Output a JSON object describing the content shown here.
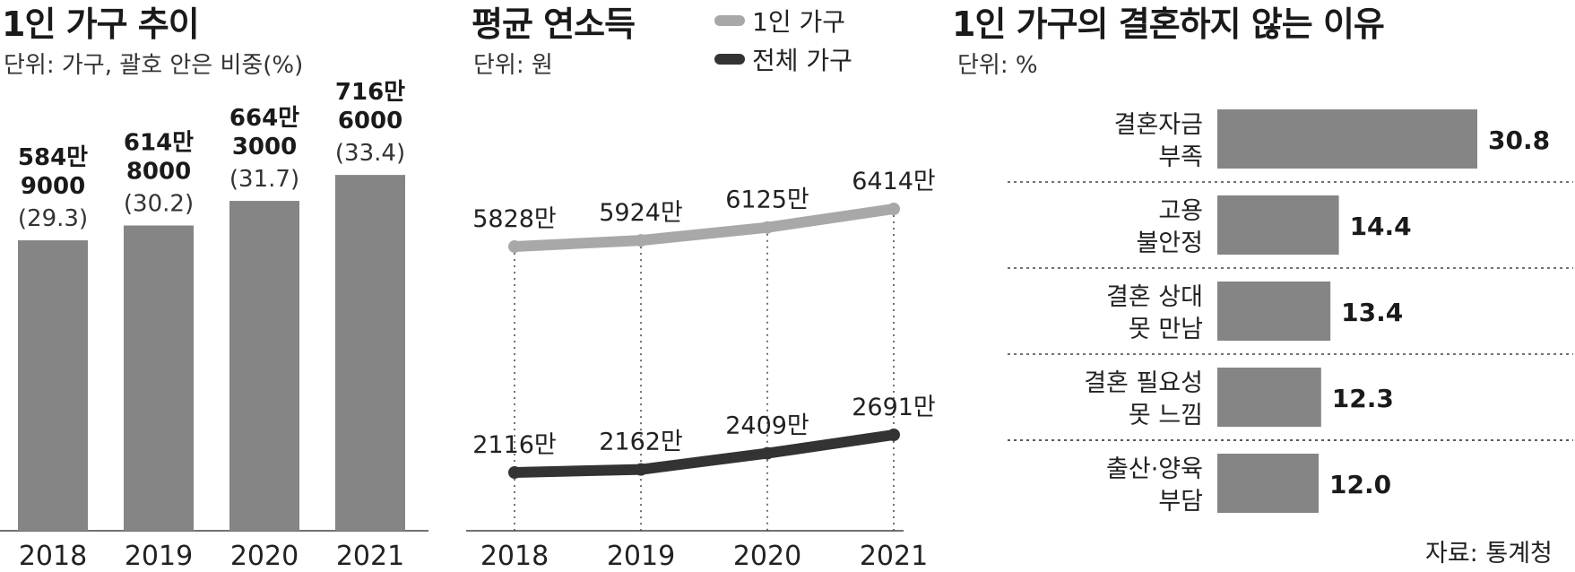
{
  "colors": {
    "bar": "#858585",
    "line_single": "#a8a8a8",
    "line_total": "#333333",
    "text": "#222222"
  },
  "chart_data": [
    {
      "type": "bar",
      "title": "1인 가구 추이",
      "subtitle": "단위: 가구, 괄호 안은 비중(%)",
      "categories": [
        "2018",
        "2019",
        "2020",
        "2021"
      ],
      "values": [
        5849000,
        6148000,
        6643000,
        7166000
      ],
      "label_lines": [
        [
          "584만",
          "9000"
        ],
        [
          "614만",
          "8000"
        ],
        [
          "664만",
          "3000"
        ],
        [
          "716만",
          "6000"
        ]
      ],
      "shares": [
        "(29.3)",
        "(30.2)",
        "(31.7)",
        "(33.4)"
      ],
      "share_values": [
        29.3,
        30.2,
        31.7,
        33.4
      ],
      "ylim": [
        0,
        7800000
      ]
    },
    {
      "type": "line",
      "title": "평균 연소득",
      "subtitle": "단위: 원",
      "x": [
        "2018",
        "2019",
        "2020",
        "2021"
      ],
      "series": [
        {
          "name": "1인 가구",
          "values": [
            58280000,
            59240000,
            61250000,
            64140000
          ],
          "labels": [
            "5828만",
            "5924만",
            "6125만",
            "6414만"
          ],
          "color": "#a8a8a8"
        },
        {
          "name": "전체 가구",
          "values": [
            21160000,
            21620000,
            24090000,
            26910000
          ],
          "labels": [
            "2116만",
            "2162만",
            "2409만",
            "2691만"
          ],
          "color": "#333333"
        }
      ]
    },
    {
      "type": "bar",
      "orientation": "horizontal",
      "title": "1인 가구의 결혼하지 않는 이유",
      "subtitle": "단위: %",
      "categories": [
        [
          "결혼자금",
          "부족"
        ],
        [
          "고용",
          "불안정"
        ],
        [
          "결혼 상대",
          "못 만남"
        ],
        [
          "결혼 필요성",
          "못 느낌"
        ],
        [
          "출산·양육",
          "부담"
        ]
      ],
      "values": [
        30.8,
        14.4,
        13.4,
        12.3,
        12.0
      ],
      "value_labels": [
        "30.8",
        "14.4",
        "13.4",
        "12.3",
        "12.0"
      ],
      "xlim": [
        0,
        34
      ]
    }
  ],
  "source": "자료: 통계청"
}
